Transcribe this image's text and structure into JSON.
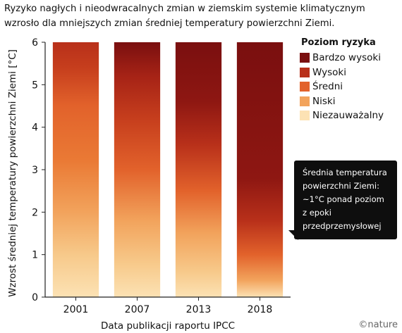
{
  "title": "Ryzyko nagłych i nieodwracalnych zmian w ziemskim systemie klimatycznym wzrosło dla mniejszych zmian średniej temperatury powierzchni Ziemi.",
  "legend": {
    "title": "Poziom ryzyka",
    "items": [
      {
        "label": "Bardzo wysoki",
        "color": "#7a0f0f"
      },
      {
        "label": "Wysoki",
        "color": "#b8301a"
      },
      {
        "label": "Średni",
        "color": "#e2622b"
      },
      {
        "label": "Niski",
        "color": "#f2a35c"
      },
      {
        "label": "Niezauważalny",
        "color": "#fce2b4"
      }
    ]
  },
  "callout": {
    "lines": [
      "Średnia temperatura",
      "powierzchni Ziemi:",
      "~1°C ponad poziom",
      "z epoki",
      "przedprzemysłowej"
    ]
  },
  "credit": "©nature",
  "chart_data": {
    "type": "bar",
    "categories": [
      "2001",
      "2007",
      "2013",
      "2018"
    ],
    "values": [
      6,
      6,
      6,
      6
    ],
    "xlabel": "Data publikacji raportu IPCC",
    "ylabel": "Wzrost średniej temperatury powierzchni Ziemi [°C]",
    "ylim": [
      0,
      6
    ],
    "yticks": [
      0,
      1,
      2,
      3,
      4,
      5,
      6
    ],
    "grid": false,
    "legend_position": "top-right",
    "risk_gradients": [
      {
        "category": "2001",
        "stops": [
          [
            0,
            "#fce2b4"
          ],
          [
            1.0,
            "#f7c98a"
          ],
          [
            2.0,
            "#f2a35c"
          ],
          [
            3.2,
            "#ea7a35"
          ],
          [
            4.5,
            "#e2622b"
          ],
          [
            5.4,
            "#c63e1d"
          ],
          [
            6,
            "#b8301a"
          ]
        ]
      },
      {
        "category": "2007",
        "stops": [
          [
            0,
            "#fce2b4"
          ],
          [
            0.8,
            "#f7c98a"
          ],
          [
            1.8,
            "#f2a35c"
          ],
          [
            3.0,
            "#e2622b"
          ],
          [
            4.2,
            "#c63e1d"
          ],
          [
            5.2,
            "#a62316"
          ],
          [
            6,
            "#7a0f0f"
          ]
        ]
      },
      {
        "category": "2013",
        "stops": [
          [
            0,
            "#fce2b4"
          ],
          [
            0.6,
            "#f7c98a"
          ],
          [
            1.5,
            "#f2a35c"
          ],
          [
            2.5,
            "#e2622b"
          ],
          [
            3.6,
            "#b8301a"
          ],
          [
            4.6,
            "#8e1712"
          ],
          [
            6,
            "#7a0f0f"
          ]
        ]
      },
      {
        "category": "2018",
        "stops": [
          [
            0,
            "#fce2b4"
          ],
          [
            0.4,
            "#f2a35c"
          ],
          [
            1.0,
            "#e2622b"
          ],
          [
            1.8,
            "#b8301a"
          ],
          [
            2.8,
            "#8e1712"
          ],
          [
            6,
            "#7a0f0f"
          ]
        ]
      }
    ]
  }
}
